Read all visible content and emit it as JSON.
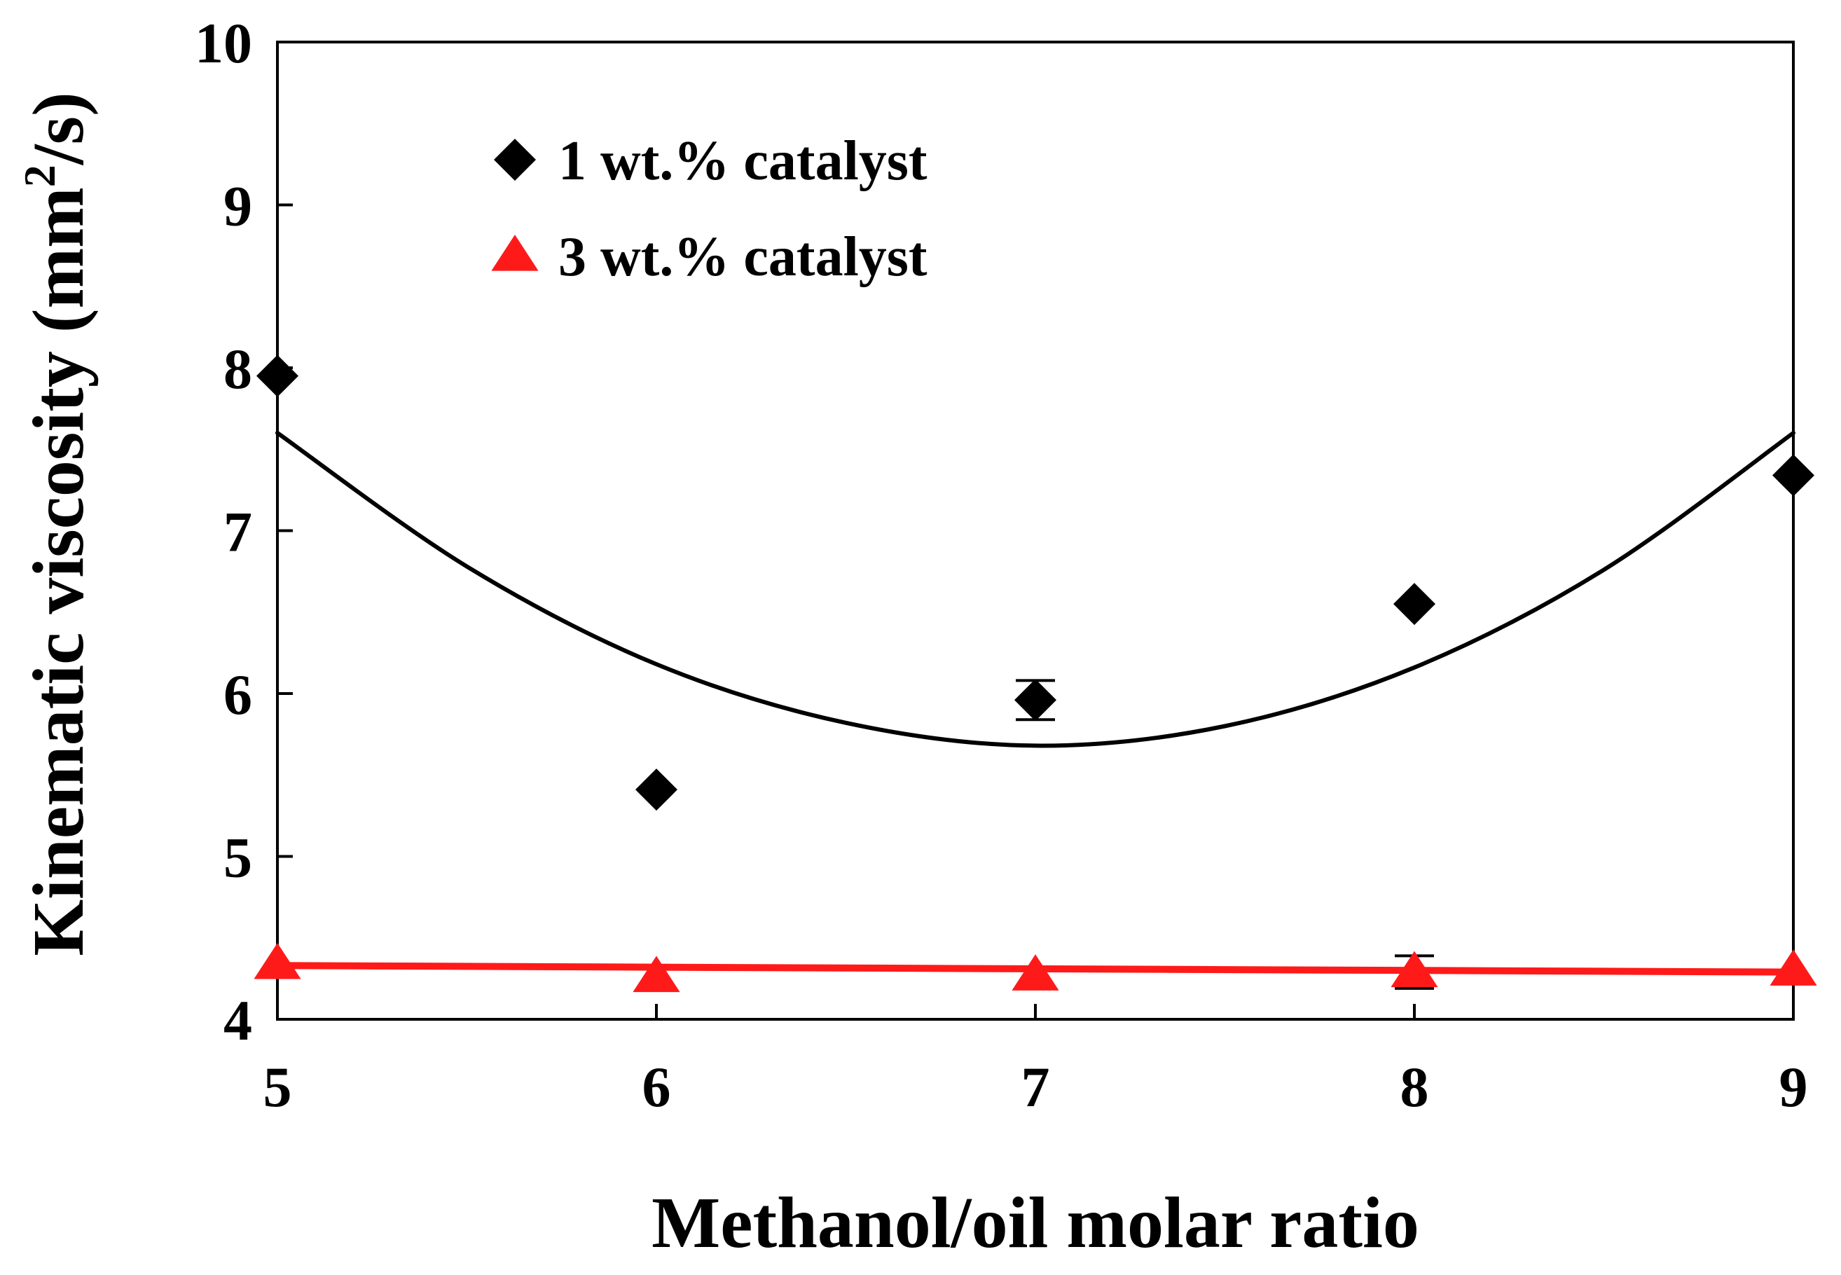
{
  "chart_data": {
    "type": "scatter",
    "title": "",
    "xlabel": "Methanol/oil molar ratio",
    "ylabel_main": "Kinematic viscosity (mm",
    "ylabel_sup": "2",
    "ylabel_end": "/s)",
    "xlim": [
      5,
      9
    ],
    "ylim": [
      4,
      10
    ],
    "xticks": [
      "5",
      "6",
      "7",
      "8",
      "9"
    ],
    "yticks": [
      "4",
      "5",
      "6",
      "7",
      "8",
      "9",
      "10"
    ],
    "grid": false,
    "legend_position": "top-left",
    "series": [
      {
        "name": "1 wt.% catalyst",
        "marker": "diamond",
        "color": "#000000",
        "x": [
          5,
          6,
          7,
          8,
          9
        ],
        "y": [
          7.95,
          5.41,
          5.96,
          6.55,
          7.34
        ],
        "error": [
          0,
          0,
          0.12,
          0,
          0
        ],
        "trend": {
          "type": "quadratic",
          "x": [
            5,
            5.5,
            6,
            6.5,
            7,
            7.5,
            8,
            8.5,
            9
          ],
          "y": [
            7.6,
            6.78,
            6.18,
            5.82,
            5.68,
            5.8,
            6.16,
            6.76,
            7.6
          ]
        }
      },
      {
        "name": "3 wt.% catalyst",
        "marker": "triangle",
        "color": "#ff1a1a",
        "x": [
          5,
          6,
          7,
          8,
          9
        ],
        "y": [
          4.34,
          4.26,
          4.27,
          4.29,
          4.3
        ],
        "error": [
          0,
          0,
          0,
          0.1,
          0
        ],
        "trend": {
          "type": "linear",
          "x": [
            5,
            9
          ],
          "y": [
            4.33,
            4.29
          ]
        }
      }
    ]
  }
}
